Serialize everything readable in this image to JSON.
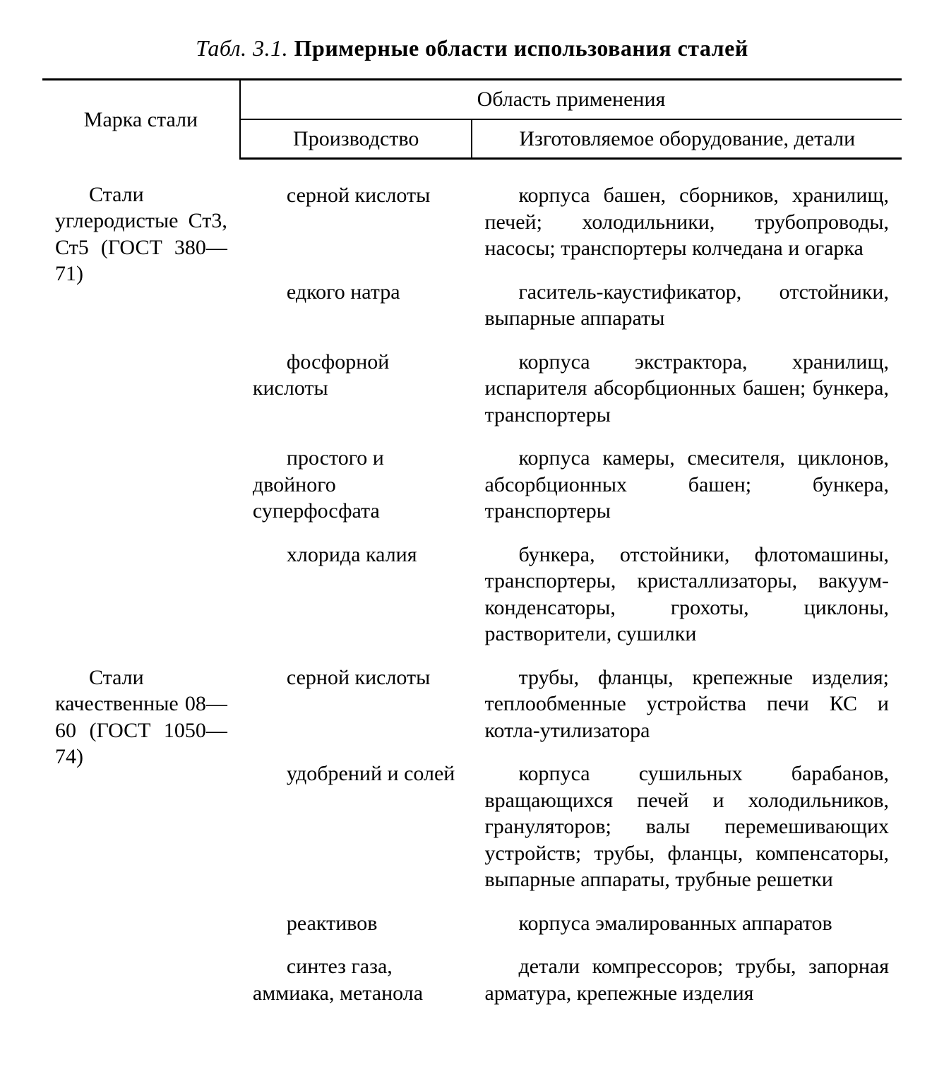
{
  "caption_label": "Табл. 3.1.",
  "caption_title": "Примерные области использования сталей",
  "header": {
    "marka": "Марка стали",
    "oblast": "Область применения",
    "proizv": "Производство",
    "equip": "Изготовляемое оборудование, детали"
  },
  "sections": [
    {
      "marka": "Стали углеродистые Ст3, Ст5 (ГОСТ 380—71)",
      "rows": [
        {
          "proizv": "серной кислоты",
          "equip": "корпуса башен, сборников, хранилищ, печей; холодильники, трубопроводы, насосы; транспортеры колчедана и огарка"
        },
        {
          "proizv": "едкого натра",
          "equip": "гаситель-каустификатор, отстойники, выпарные аппараты"
        },
        {
          "proizv": "фосфорной кислоты",
          "equip": "корпуса экстрактора, хранилищ, испарителя абсорбционных башен; бункера, транспортеры"
        },
        {
          "proizv": "простого и двойного суперфосфата",
          "equip": "корпуса камеры, смесителя, циклонов, абсорбционных башен; бункера, транспортеры"
        },
        {
          "proizv": "хлорида калия",
          "equip": "бункера, отстойники, флотомашины, транспортеры, кристаллизаторы, вакуум-конденсаторы, грохоты, циклоны, растворители, сушилки"
        }
      ]
    },
    {
      "marka": "Стали качественные 08—60 (ГОСТ 1050—74)",
      "rows": [
        {
          "proizv": "серной кислоты",
          "equip": "трубы, фланцы, крепежные изделия; теплообменные устройства печи КС и котла-утилизатора"
        },
        {
          "proizv": "удобрений и солей",
          "equip": "корпуса сушильных барабанов, вращающихся печей и холодильников, грануляторов; валы перемешивающих устройств; трубы, фланцы, компенсаторы, выпарные аппараты, трубные решетки"
        },
        {
          "proizv": "реактивов",
          "equip": "корпуса эмалированных аппаратов"
        },
        {
          "proizv": "синтез газа, аммиака, метанола",
          "equip": "детали компрессоров; трубы, запорная арматура, крепежные изделия"
        }
      ]
    }
  ]
}
